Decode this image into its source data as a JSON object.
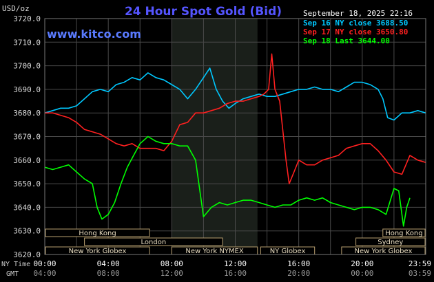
{
  "header": {
    "title": "24 Hour Spot Gold (Bid)",
    "website": "www.kitco.com",
    "timestamp": "September 18, 2025 22:16",
    "currency_label": "USD/oz"
  },
  "legend": [
    {
      "label": "Sep 16 NY close 3688.50",
      "color": "#00c8ff"
    },
    {
      "label": "Sep 17 NY close 3650.80",
      "color": "#ff2020"
    },
    {
      "label": "Sep 18 Last 3644.00",
      "color": "#00ff00"
    }
  ],
  "sessions": [
    {
      "label": "Hong Kong",
      "row": 0,
      "start": -0.5,
      "end": 6.6
    },
    {
      "label": "London",
      "row": 1,
      "start": 2.5,
      "end": 11.2
    },
    {
      "label": "New York Globex",
      "row": 2,
      "start": 0.0,
      "end": 6.6
    },
    {
      "label": "New York NYMEX",
      "row": 2,
      "start": 8.0,
      "end": 13.4
    },
    {
      "label": "NY Globex",
      "row": 2,
      "start": 13.6,
      "end": 17.0
    },
    {
      "label": "Hong Kong",
      "row": 0,
      "start": 21.3,
      "end": 24.5
    },
    {
      "label": "Sydney",
      "row": 1,
      "start": 19.6,
      "end": 24.5
    },
    {
      "label": "New York Globex",
      "row": 2,
      "start": 18.7,
      "end": 24.5
    }
  ],
  "time_labels": {
    "ny_label": "NY Time",
    "gmt_label": "GMT",
    "ny_ticks": [
      "00:00",
      "04:00",
      "08:00",
      "12:00",
      "16:00",
      "20:00",
      "23:59"
    ],
    "gmt_ticks": [
      "04:00",
      "08:00",
      "12:00",
      "16:00",
      "20:00",
      "00:00",
      "03:59"
    ]
  },
  "chart_data": {
    "type": "line",
    "title": "24 Hour Spot Gold (Bid)",
    "ylabel": "USD/oz",
    "ylim": [
      3620,
      3720
    ],
    "yticks": [
      "3720.0",
      "3710.0",
      "3700.0",
      "3690.0",
      "3680.0",
      "3670.0",
      "3660.0",
      "3650.0",
      "3640.0",
      "3630.0",
      "3620.0"
    ],
    "xlim_hours": [
      0,
      24
    ],
    "shaded_hours": [
      8.0,
      13.4
    ],
    "grid": true,
    "series": [
      {
        "name": "Sep 16 NY close 3688.50",
        "color": "#00c8ff",
        "points": [
          [
            0,
            3680
          ],
          [
            0.5,
            3681
          ],
          [
            1,
            3682
          ],
          [
            1.5,
            3682
          ],
          [
            2,
            3683
          ],
          [
            2.5,
            3686
          ],
          [
            3,
            3689
          ],
          [
            3.5,
            3690
          ],
          [
            4,
            3689
          ],
          [
            4.5,
            3692
          ],
          [
            5,
            3693
          ],
          [
            5.5,
            3695
          ],
          [
            6,
            3694
          ],
          [
            6.5,
            3697
          ],
          [
            7,
            3695
          ],
          [
            7.5,
            3694
          ],
          [
            8,
            3692
          ],
          [
            8.5,
            3690
          ],
          [
            9,
            3686
          ],
          [
            9.5,
            3690
          ],
          [
            10,
            3695
          ],
          [
            10.4,
            3699
          ],
          [
            10.8,
            3690
          ],
          [
            11.2,
            3685
          ],
          [
            11.6,
            3682
          ],
          [
            12,
            3684
          ],
          [
            12.5,
            3686
          ],
          [
            13,
            3687
          ],
          [
            13.5,
            3688
          ],
          [
            14,
            3687
          ],
          [
            14.5,
            3687
          ],
          [
            15,
            3688
          ],
          [
            15.5,
            3689
          ],
          [
            16,
            3690
          ],
          [
            16.5,
            3690
          ],
          [
            17,
            3691
          ],
          [
            17.5,
            3690
          ],
          [
            18,
            3690
          ],
          [
            18.5,
            3689
          ],
          [
            19,
            3691
          ],
          [
            19.5,
            3693
          ],
          [
            20,
            3693
          ],
          [
            20.5,
            3692
          ],
          [
            21,
            3690
          ],
          [
            21.3,
            3686
          ],
          [
            21.6,
            3678
          ],
          [
            22,
            3677
          ],
          [
            22.5,
            3680
          ],
          [
            23,
            3680
          ],
          [
            23.5,
            3681
          ],
          [
            24,
            3680
          ]
        ]
      },
      {
        "name": "Sep 17 NY close 3650.80",
        "color": "#ff2020",
        "points": [
          [
            0,
            3680
          ],
          [
            0.5,
            3680
          ],
          [
            1,
            3679
          ],
          [
            1.5,
            3678
          ],
          [
            2,
            3676
          ],
          [
            2.5,
            3673
          ],
          [
            3,
            3672
          ],
          [
            3.5,
            3671
          ],
          [
            4,
            3669
          ],
          [
            4.5,
            3667
          ],
          [
            5,
            3666
          ],
          [
            5.5,
            3667
          ],
          [
            6,
            3665
          ],
          [
            6.5,
            3665
          ],
          [
            7,
            3665
          ],
          [
            7.5,
            3664
          ],
          [
            8,
            3668
          ],
          [
            8.5,
            3675
          ],
          [
            9,
            3676
          ],
          [
            9.5,
            3680
          ],
          [
            10,
            3680
          ],
          [
            10.5,
            3681
          ],
          [
            11,
            3682
          ],
          [
            11.5,
            3684
          ],
          [
            12,
            3685
          ],
          [
            12.5,
            3685
          ],
          [
            13,
            3686
          ],
          [
            13.5,
            3687
          ],
          [
            13.8,
            3688
          ],
          [
            14.1,
            3690
          ],
          [
            14.3,
            3705
          ],
          [
            14.5,
            3690
          ],
          [
            14.8,
            3685
          ],
          [
            15.2,
            3660
          ],
          [
            15.4,
            3650
          ],
          [
            15.7,
            3655
          ],
          [
            16,
            3660
          ],
          [
            16.5,
            3658
          ],
          [
            17,
            3658
          ],
          [
            17.5,
            3660
          ],
          [
            18,
            3661
          ],
          [
            18.5,
            3662
          ],
          [
            19,
            3665
          ],
          [
            19.5,
            3666
          ],
          [
            20,
            3667
          ],
          [
            20.5,
            3667
          ],
          [
            21,
            3664
          ],
          [
            21.5,
            3660
          ],
          [
            22,
            3655
          ],
          [
            22.5,
            3654
          ],
          [
            23,
            3662
          ],
          [
            23.5,
            3660
          ],
          [
            24,
            3659
          ]
        ]
      },
      {
        "name": "Sep 18 Last 3644.00",
        "color": "#00ff00",
        "points": [
          [
            0,
            3657
          ],
          [
            0.5,
            3656
          ],
          [
            1,
            3657
          ],
          [
            1.5,
            3658
          ],
          [
            2,
            3655
          ],
          [
            2.5,
            3652
          ],
          [
            3,
            3650
          ],
          [
            3.3,
            3640
          ],
          [
            3.6,
            3635
          ],
          [
            4,
            3637
          ],
          [
            4.4,
            3642
          ],
          [
            4.8,
            3650
          ],
          [
            5.2,
            3657
          ],
          [
            5.6,
            3662
          ],
          [
            6,
            3667
          ],
          [
            6.5,
            3670
          ],
          [
            7,
            3668
          ],
          [
            7.5,
            3667
          ],
          [
            8,
            3667
          ],
          [
            8.5,
            3666
          ],
          [
            9,
            3666
          ],
          [
            9.5,
            3660
          ],
          [
            10,
            3636
          ],
          [
            10.5,
            3640
          ],
          [
            11,
            3642
          ],
          [
            11.5,
            3641
          ],
          [
            12,
            3642
          ],
          [
            12.5,
            3643
          ],
          [
            13,
            3643
          ],
          [
            13.5,
            3642
          ],
          [
            14,
            3641
          ],
          [
            14.5,
            3640
          ],
          [
            15,
            3641
          ],
          [
            15.5,
            3641
          ],
          [
            16,
            3643
          ],
          [
            16.5,
            3644
          ],
          [
            17,
            3643
          ],
          [
            17.5,
            3644
          ],
          [
            18,
            3642
          ],
          [
            18.5,
            3641
          ],
          [
            19,
            3640
          ],
          [
            19.5,
            3639
          ],
          [
            20,
            3640
          ],
          [
            20.5,
            3640
          ],
          [
            21,
            3639
          ],
          [
            21.5,
            3637
          ],
          [
            22,
            3648
          ],
          [
            22.3,
            3647
          ],
          [
            22.6,
            3632
          ],
          [
            22.8,
            3640
          ],
          [
            23,
            3644
          ]
        ]
      }
    ]
  }
}
